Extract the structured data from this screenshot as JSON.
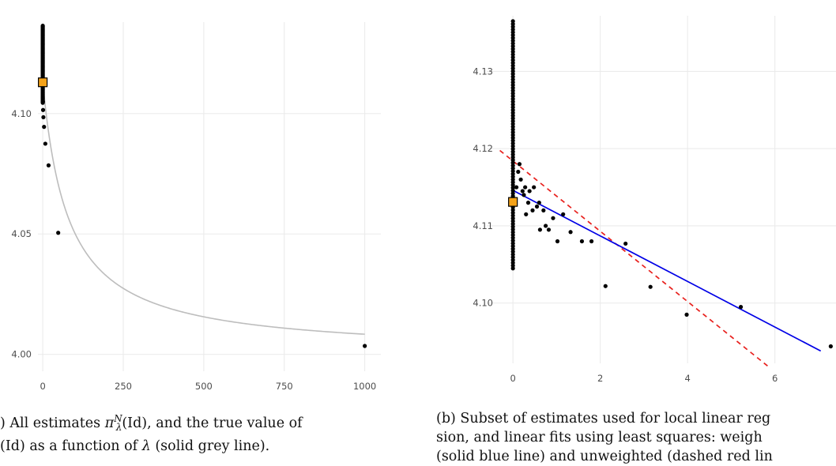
{
  "chart_data": [
    {
      "type": "scatter",
      "xlim": [
        -15,
        1050
      ],
      "ylim": [
        3.993,
        4.138
      ],
      "grid": true,
      "x_ticks": [
        0,
        250,
        500,
        750,
        1000
      ],
      "x_tick_labels": [
        "0",
        "250",
        "500",
        "750",
        "1000"
      ],
      "y_ticks": [
        4.0,
        4.05,
        4.1
      ],
      "y_tick_labels": [
        "4.00",
        "4.05",
        "4.10"
      ],
      "true_value_curve": {
        "color": "#bdbdbd",
        "asymptote": 4.0,
        "amplitude": 0.1131,
        "scale": 80
      },
      "points": [
        {
          "x": 1000,
          "y": 4.0035
        },
        {
          "x": 48,
          "y": 4.0505
        },
        {
          "x": 18,
          "y": 4.0785
        },
        {
          "x": 8,
          "y": 4.0875
        },
        {
          "x": 4,
          "y": 4.0945
        },
        {
          "x": 2,
          "y": 4.0985
        },
        {
          "x": 1,
          "y": 4.1015
        },
        {
          "x": 0.5,
          "y": 4.105
        }
      ],
      "column_at_zero": {
        "x": 0,
        "y_min": 4.1045,
        "y_max": 4.1365
      },
      "marker": {
        "x": 0,
        "y": 4.113,
        "color": "#f5a31a"
      },
      "caption": {
        "line1_a": ") All estimates ",
        "pi": "π",
        "sup": "N",
        "sub": "λ",
        "line1_b": "(Id), and the true value of",
        "line2_a": "(Id) as a function of ",
        "lambda": "λ",
        "line2_b": " (solid grey line)."
      }
    },
    {
      "type": "scatter",
      "xlim": [
        -0.6,
        7.4
      ],
      "ylim": [
        4.0922,
        4.1372
      ],
      "grid": true,
      "x_ticks": [
        0,
        2,
        4,
        6
      ],
      "x_tick_labels": [
        "0",
        "2",
        "4",
        "6"
      ],
      "y_ticks": [
        4.1,
        4.11,
        4.12,
        4.13
      ],
      "y_tick_labels": [
        "4.10",
        "4.11",
        "4.12",
        "4.13"
      ],
      "column_at_zero": {
        "x": 0,
        "y_min": 4.1045,
        "y_max": 4.1365
      },
      "points": [
        {
          "x": 0.08,
          "y": 4.115
        },
        {
          "x": 0.12,
          "y": 4.117
        },
        {
          "x": 0.15,
          "y": 4.118
        },
        {
          "x": 0.18,
          "y": 4.116
        },
        {
          "x": 0.22,
          "y": 4.1145
        },
        {
          "x": 0.25,
          "y": 4.114
        },
        {
          "x": 0.28,
          "y": 4.115
        },
        {
          "x": 0.3,
          "y": 4.1115
        },
        {
          "x": 0.35,
          "y": 4.113
        },
        {
          "x": 0.38,
          "y": 4.1145
        },
        {
          "x": 0.45,
          "y": 4.112
        },
        {
          "x": 0.48,
          "y": 4.115
        },
        {
          "x": 0.55,
          "y": 4.1125
        },
        {
          "x": 0.6,
          "y": 4.113
        },
        {
          "x": 0.62,
          "y": 4.1095
        },
        {
          "x": 0.7,
          "y": 4.112
        },
        {
          "x": 0.75,
          "y": 4.11
        },
        {
          "x": 0.82,
          "y": 4.1095
        },
        {
          "x": 0.92,
          "y": 4.111
        },
        {
          "x": 1.02,
          "y": 4.108
        },
        {
          "x": 1.15,
          "y": 4.1115
        },
        {
          "x": 1.32,
          "y": 4.1092
        },
        {
          "x": 1.58,
          "y": 4.108
        },
        {
          "x": 1.8,
          "y": 4.108
        },
        {
          "x": 2.12,
          "y": 4.1022
        },
        {
          "x": 2.58,
          "y": 4.1077
        },
        {
          "x": 3.15,
          "y": 4.1021
        },
        {
          "x": 3.98,
          "y": 4.0985
        },
        {
          "x": 5.22,
          "y": 4.0995
        },
        {
          "x": 7.28,
          "y": 4.0944
        }
      ],
      "weighted_fit": {
        "color": "#0000e6",
        "intercept": 4.1146,
        "slope": -0.00295,
        "x_range": [
          0,
          7.05
        ]
      },
      "unweighted_fit": {
        "color": "#e8201d",
        "intercept": 4.1184,
        "slope": -0.00455,
        "x_range": [
          -0.3,
          5.85
        ]
      },
      "marker": {
        "x": 0,
        "y": 4.1131,
        "color": "#f5a31a"
      },
      "caption": {
        "line1": "(b) Subset of estimates used for local linear reg",
        "line2": "sion, and linear fits using least squares: weigh",
        "line3": "(solid blue line) and unweighted (dashed red lin"
      }
    }
  ]
}
